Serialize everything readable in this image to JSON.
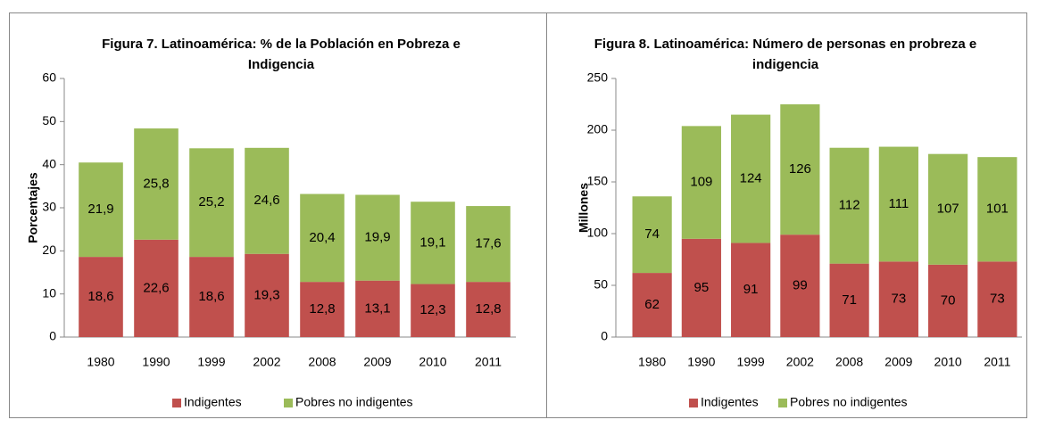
{
  "chart_data": [
    {
      "type": "bar",
      "stacked": true,
      "title": "Figura 7. Latinoamérica: % de la Población en Pobreza e Indigencia",
      "ylabel": "Porcentajes",
      "categories": [
        "1980",
        "1990",
        "1999",
        "2002",
        "2008",
        "2009",
        "2010",
        "2011"
      ],
      "series": [
        {
          "name": "Indigentes",
          "color": "#c0504d",
          "values": [
            18.6,
            22.6,
            18.6,
            19.3,
            12.8,
            13.1,
            12.3,
            12.8
          ],
          "value_labels": [
            "18,6",
            "22,6",
            "18,6",
            "19,3",
            "12,8",
            "13,1",
            "12,3",
            "12,8"
          ]
        },
        {
          "name": "Pobres no indigentes",
          "color": "#9bbb59",
          "values": [
            21.9,
            25.8,
            25.2,
            24.6,
            20.4,
            19.9,
            19.1,
            17.6
          ],
          "value_labels": [
            "21,9",
            "25,8",
            "25,2",
            "24,6",
            "20,4",
            "19,9",
            "19,1",
            "17,6"
          ]
        }
      ],
      "ylim": [
        0,
        60
      ],
      "yticks": [
        0,
        10,
        20,
        30,
        40,
        50,
        60
      ],
      "legend": "bottom"
    },
    {
      "type": "bar",
      "stacked": true,
      "title": "Figura 8. Latinoamérica: Número de personas en probreza e indigencia",
      "ylabel": "Millones",
      "categories": [
        "1980",
        "1990",
        "1999",
        "2002",
        "2008",
        "2009",
        "2010",
        "2011"
      ],
      "series": [
        {
          "name": "Indigentes",
          "color": "#c0504d",
          "values": [
            62,
            95,
            91,
            99,
            71,
            73,
            70,
            73
          ]
        },
        {
          "name": "Pobres no indigentes",
          "color": "#9bbb59",
          "values": [
            74,
            109,
            124,
            126,
            112,
            111,
            107,
            101
          ]
        }
      ],
      "ylim": [
        0,
        250
      ],
      "yticks": [
        0,
        50,
        100,
        150,
        200,
        250
      ],
      "legend": "bottom"
    }
  ]
}
